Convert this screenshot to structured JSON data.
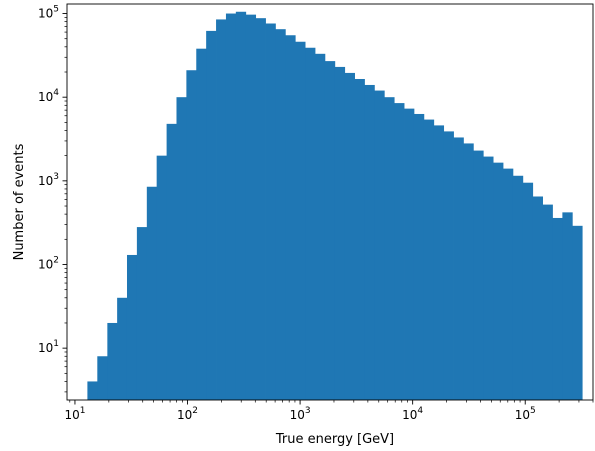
{
  "chart_data": {
    "type": "bar",
    "xlabel": "True energy [GeV]",
    "ylabel": "Number of events",
    "xscale": "log",
    "yscale": "log",
    "xlim": [
      8.5,
      400000
    ],
    "ylim": [
      2.4,
      130000
    ],
    "grid": false,
    "bar_color": "#1f77b4",
    "x_tick_labels": [
      {
        "base": "10",
        "exp": "1",
        "value": 10
      },
      {
        "base": "10",
        "exp": "2",
        "value": 100
      },
      {
        "base": "10",
        "exp": "3",
        "value": 1000
      },
      {
        "base": "10",
        "exp": "4",
        "value": 10000
      },
      {
        "base": "10",
        "exp": "5",
        "value": 100000
      }
    ],
    "y_tick_labels": [
      {
        "base": "10",
        "exp": "1",
        "value": 10
      },
      {
        "base": "10",
        "exp": "2",
        "value": 100
      },
      {
        "base": "10",
        "exp": "3",
        "value": 1000
      },
      {
        "base": "10",
        "exp": "4",
        "value": 10000
      },
      {
        "base": "10",
        "exp": "5",
        "value": 100000
      }
    ],
    "bin_edges": [
      12.9,
      15.8,
      19.4,
      23.7,
      29.0,
      35.5,
      43.5,
      53.2,
      65.2,
      79.8,
      97.7,
      119.6,
      146.4,
      179.3,
      219.5,
      268.7,
      329.0,
      402.8,
      493.2,
      603.8,
      739.2,
      905.1,
      1108,
      1357,
      1661,
      2034,
      2490,
      3049,
      3733,
      4570,
      5595,
      6850,
      8387,
      10269,
      12572,
      15392,
      18845,
      23073,
      28249,
      34587,
      42347,
      51847,
      63479,
      77720,
      95157,
      116506,
      142644,
      174646,
      213828,
      261800,
      320534
    ],
    "values": [
      4,
      8,
      20,
      40,
      130,
      280,
      850,
      2000,
      4800,
      10000,
      21000,
      38000,
      62000,
      85000,
      100000,
      105000,
      97000,
      88000,
      76000,
      65000,
      55000,
      46000,
      39000,
      33000,
      27000,
      23000,
      19500,
      16500,
      14000,
      12000,
      10000,
      8500,
      7300,
      6300,
      5400,
      4600,
      3900,
      3300,
      2800,
      2300,
      1950,
      1650,
      1400,
      1150,
      950,
      650,
      520,
      360,
      420,
      290
    ]
  }
}
